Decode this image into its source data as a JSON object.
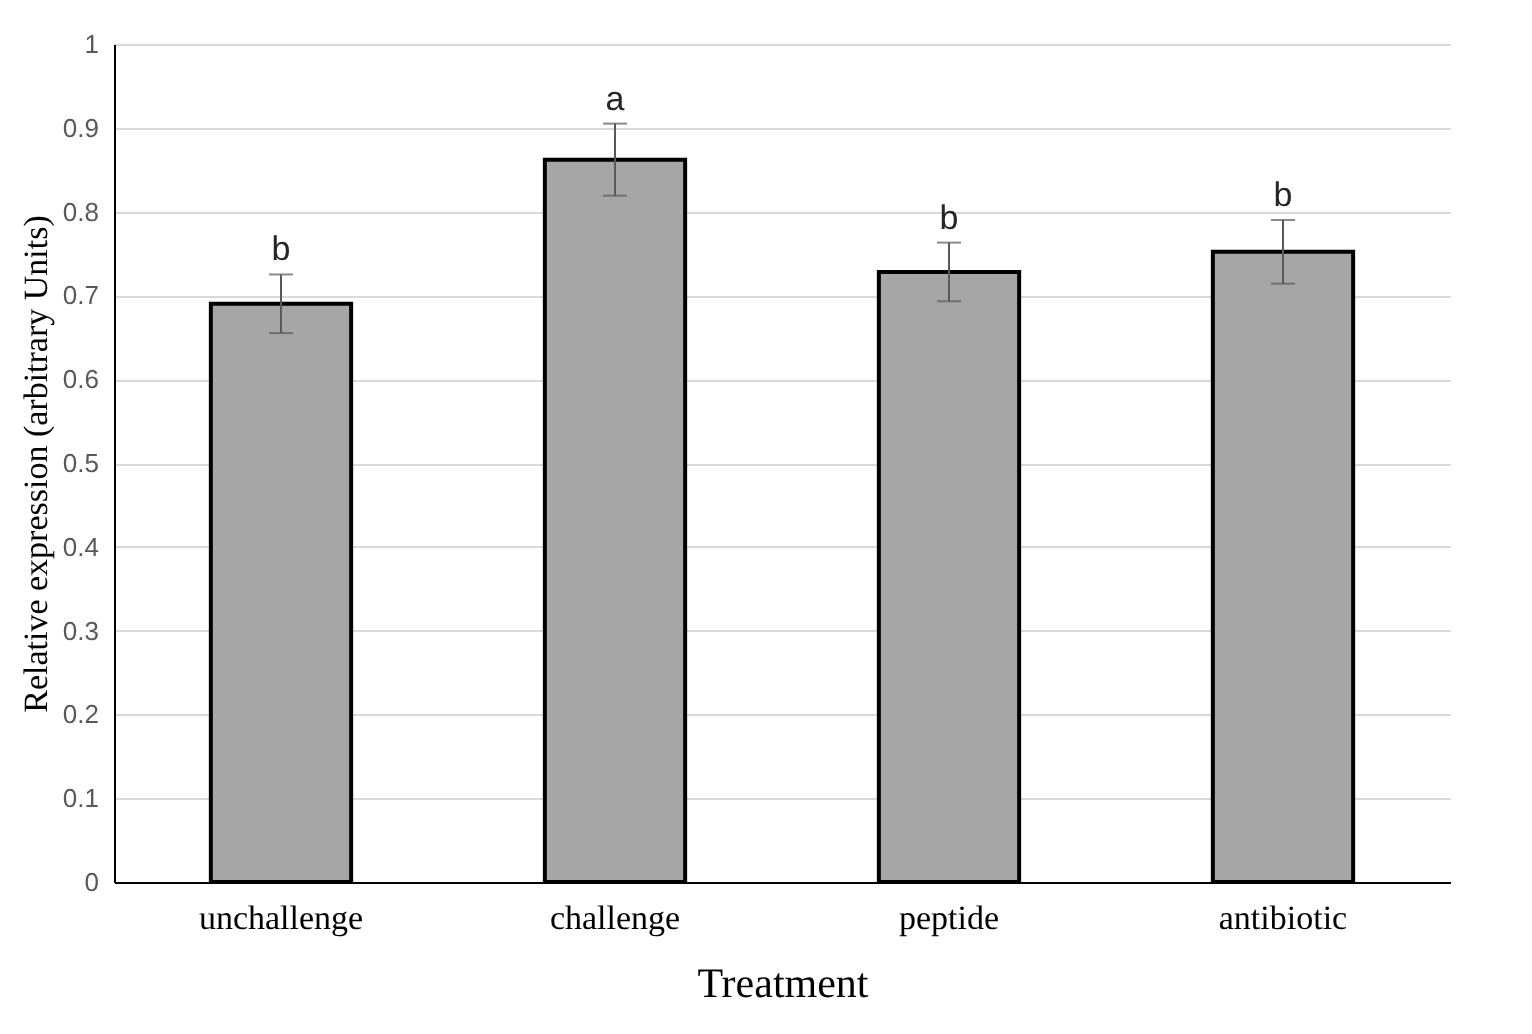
{
  "chart_data": {
    "type": "bar",
    "xlabel": "Treatment",
    "ylabel": "Relative expression (arbitrary Units)",
    "categories": [
      "unchallenge",
      "challenge",
      "peptide",
      "antibiotic"
    ],
    "values": [
      0.69,
      0.862,
      0.728,
      0.752
    ],
    "errors": [
      0.035,
      0.043,
      0.035,
      0.038
    ],
    "color": "#a6a6a6",
    "ylim": [
      0,
      1
    ],
    "yticks": [
      0,
      0.1,
      0.2,
      0.3,
      0.4,
      0.5,
      0.6,
      0.7,
      0.8,
      0.9,
      1
    ],
    "grid": "y",
    "annotations": [
      {
        "text": "b",
        "x": "unchallenge",
        "y": 0.725
      },
      {
        "text": "a",
        "x": "challenge",
        "y": 0.905
      },
      {
        "text": "b",
        "x": "peptide",
        "y": 0.763
      },
      {
        "text": "b",
        "x": "antibiotic",
        "y": 0.79
      }
    ]
  }
}
